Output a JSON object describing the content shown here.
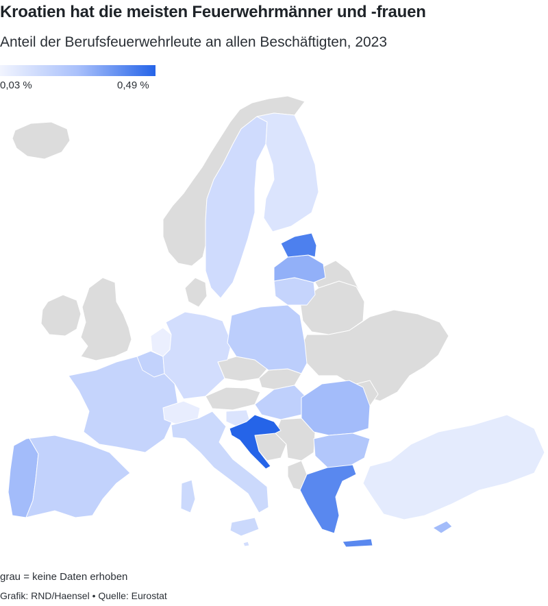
{
  "header": {
    "title": "Kroatien hat die meisten Feuerwehrmänner und -frauen",
    "subtitle": "Anteil der Berufsfeuerwehrleute an allen Beschäftigten, 2023"
  },
  "legend": {
    "min_label": "0,03 %",
    "max_label": "0,49 %",
    "min_value": 0.03,
    "max_value": 0.49,
    "min_color": "#f1f4fe",
    "max_color": "#2564e8"
  },
  "footer": {
    "note": "grau = keine Daten erhoben",
    "credits": "Grafik: RND/Haensel • Quelle: Eurostat"
  },
  "colors": {
    "no_data": "#dcdcdc",
    "background": "#ffffff"
  },
  "map_data": {
    "unit": "%",
    "regions": [
      {
        "id": "HR",
        "name": "Kroatien",
        "value": 0.49
      },
      {
        "id": "EE",
        "name": "Estland",
        "value": 0.42
      },
      {
        "id": "GR",
        "name": "Griechenland",
        "value": 0.4
      },
      {
        "id": "LV",
        "name": "Lettland",
        "value": 0.3
      },
      {
        "id": "RO",
        "name": "Rumänien",
        "value": 0.27
      },
      {
        "id": "PT",
        "name": "Portugal",
        "value": 0.27
      },
      {
        "id": "CY",
        "name": "Zypern",
        "value": 0.27
      },
      {
        "id": "BG",
        "name": "Bulgarien",
        "value": 0.23
      },
      {
        "id": "PL",
        "name": "Polen",
        "value": 0.2
      },
      {
        "id": "HU",
        "name": "Ungarn",
        "value": 0.19
      },
      {
        "id": "ES",
        "name": "Spanien",
        "value": 0.18
      },
      {
        "id": "FR",
        "name": "Frankreich",
        "value": 0.17
      },
      {
        "id": "LT",
        "name": "Litauen",
        "value": 0.17
      },
      {
        "id": "BE",
        "name": "Belgien",
        "value": 0.18
      },
      {
        "id": "IT",
        "name": "Italien",
        "value": 0.15
      },
      {
        "id": "SE",
        "name": "Schweden",
        "value": 0.14
      },
      {
        "id": "DE",
        "name": "Deutschland",
        "value": 0.13
      },
      {
        "id": "MT",
        "name": "Malta",
        "value": 0.13
      },
      {
        "id": "FI",
        "name": "Finnland",
        "value": 0.1
      },
      {
        "id": "SI",
        "name": "Slowenien",
        "value": 0.1
      },
      {
        "id": "TR",
        "name": "Türkei",
        "value": 0.07
      },
      {
        "id": "CH",
        "name": "Schweiz",
        "value": 0.06
      },
      {
        "id": "NL",
        "name": "Niederlande",
        "value": 0.05
      }
    ]
  }
}
